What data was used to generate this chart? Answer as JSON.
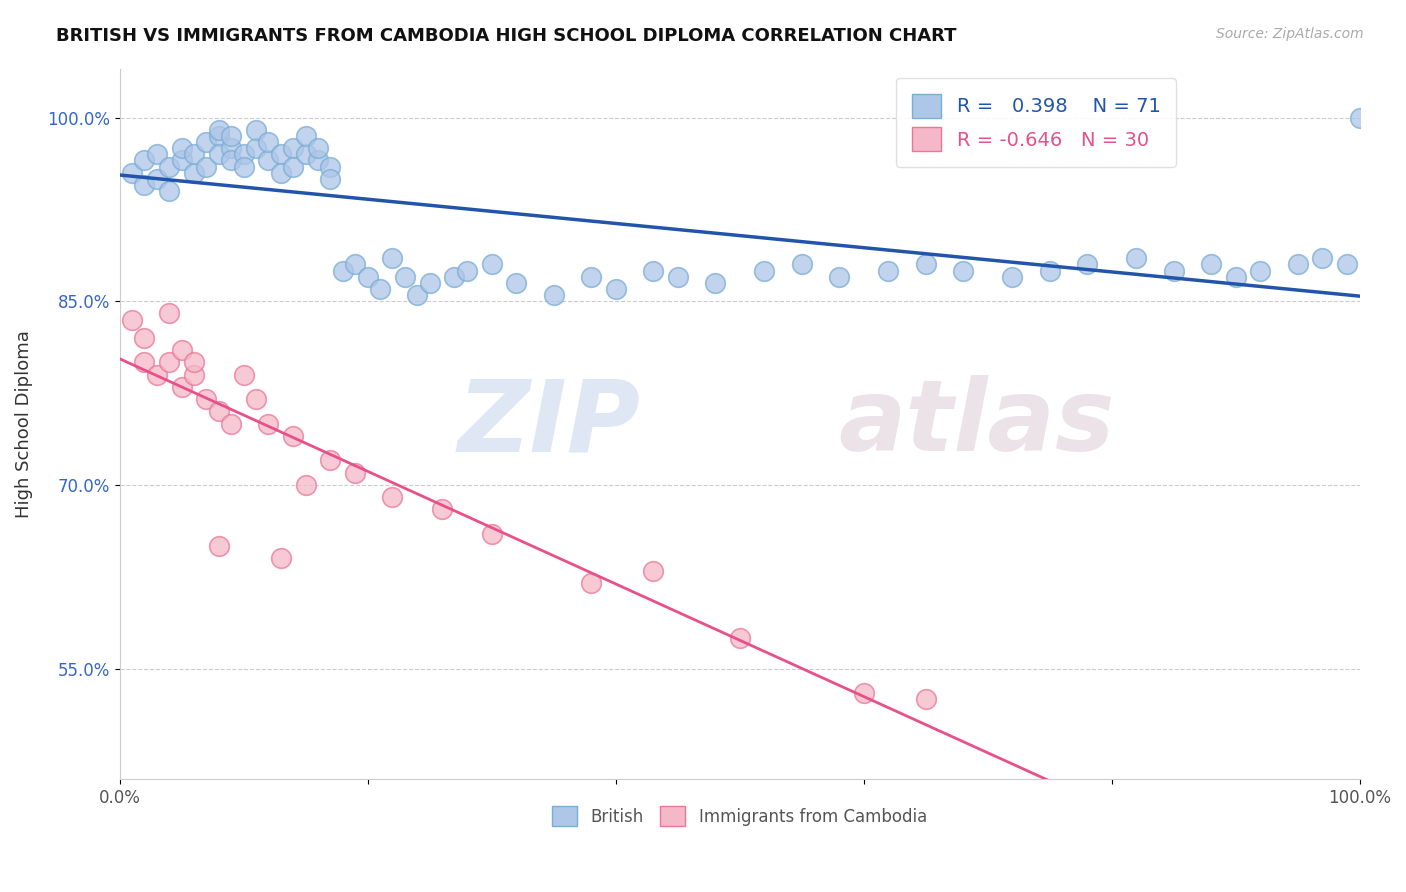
{
  "title": "BRITISH VS IMMIGRANTS FROM CAMBODIA HIGH SCHOOL DIPLOMA CORRELATION CHART",
  "source": "Source: ZipAtlas.com",
  "ylabel": "High School Diploma",
  "xlim": [
    0.0,
    1.0
  ],
  "ylim": [
    0.46,
    1.04
  ],
  "ytick_vals": [
    0.55,
    0.7,
    0.85,
    1.0
  ],
  "ytick_labels": [
    "55.0%",
    "70.0%",
    "85.0%",
    "100.0%"
  ],
  "british_color": "#aec6e8",
  "british_edge_color": "#7aadd4",
  "cambodia_color": "#f5b8c8",
  "cambodia_edge_color": "#e87898",
  "british_line_color": "#2255aa",
  "cambodia_line_color": "#e8508a",
  "legend_r_british": "0.398",
  "legend_n_british": "71",
  "legend_r_cambodia": "-0.646",
  "legend_n_cambodia": "30",
  "watermark_zip": "ZIP",
  "watermark_atlas": "atlas",
  "background_color": "#ffffff",
  "grid_color": "#cccccc",
  "british_x": [
    0.01,
    0.02,
    0.02,
    0.03,
    0.03,
    0.04,
    0.04,
    0.05,
    0.05,
    0.06,
    0.06,
    0.07,
    0.07,
    0.08,
    0.08,
    0.08,
    0.09,
    0.09,
    0.09,
    0.1,
    0.1,
    0.11,
    0.11,
    0.12,
    0.12,
    0.13,
    0.13,
    0.14,
    0.14,
    0.15,
    0.15,
    0.16,
    0.16,
    0.17,
    0.17,
    0.18,
    0.19,
    0.2,
    0.21,
    0.22,
    0.23,
    0.24,
    0.25,
    0.27,
    0.28,
    0.3,
    0.32,
    0.35,
    0.38,
    0.4,
    0.43,
    0.45,
    0.48,
    0.52,
    0.55,
    0.58,
    0.62,
    0.65,
    0.68,
    0.72,
    0.75,
    0.78,
    0.82,
    0.85,
    0.88,
    0.9,
    0.92,
    0.95,
    0.97,
    0.99,
    1.0
  ],
  "british_y": [
    0.955,
    0.945,
    0.965,
    0.95,
    0.97,
    0.94,
    0.96,
    0.965,
    0.975,
    0.955,
    0.97,
    0.98,
    0.96,
    0.985,
    0.97,
    0.99,
    0.975,
    0.965,
    0.985,
    0.97,
    0.96,
    0.975,
    0.99,
    0.965,
    0.98,
    0.97,
    0.955,
    0.975,
    0.96,
    0.97,
    0.985,
    0.965,
    0.975,
    0.96,
    0.95,
    0.875,
    0.88,
    0.87,
    0.86,
    0.885,
    0.87,
    0.855,
    0.865,
    0.87,
    0.875,
    0.88,
    0.865,
    0.855,
    0.87,
    0.86,
    0.875,
    0.87,
    0.865,
    0.875,
    0.88,
    0.87,
    0.875,
    0.88,
    0.875,
    0.87,
    0.875,
    0.88,
    0.885,
    0.875,
    0.88,
    0.87,
    0.875,
    0.88,
    0.885,
    0.88,
    1.0
  ],
  "cambodia_x": [
    0.01,
    0.02,
    0.02,
    0.03,
    0.04,
    0.04,
    0.05,
    0.05,
    0.06,
    0.06,
    0.07,
    0.08,
    0.09,
    0.1,
    0.11,
    0.12,
    0.14,
    0.15,
    0.17,
    0.19,
    0.22,
    0.26,
    0.3,
    0.38,
    0.43,
    0.5,
    0.6,
    0.65,
    0.13,
    0.08
  ],
  "cambodia_y": [
    0.835,
    0.82,
    0.8,
    0.79,
    0.8,
    0.84,
    0.81,
    0.78,
    0.79,
    0.8,
    0.77,
    0.76,
    0.75,
    0.79,
    0.77,
    0.75,
    0.74,
    0.7,
    0.72,
    0.71,
    0.69,
    0.68,
    0.66,
    0.62,
    0.63,
    0.575,
    0.53,
    0.525,
    0.64,
    0.65
  ]
}
